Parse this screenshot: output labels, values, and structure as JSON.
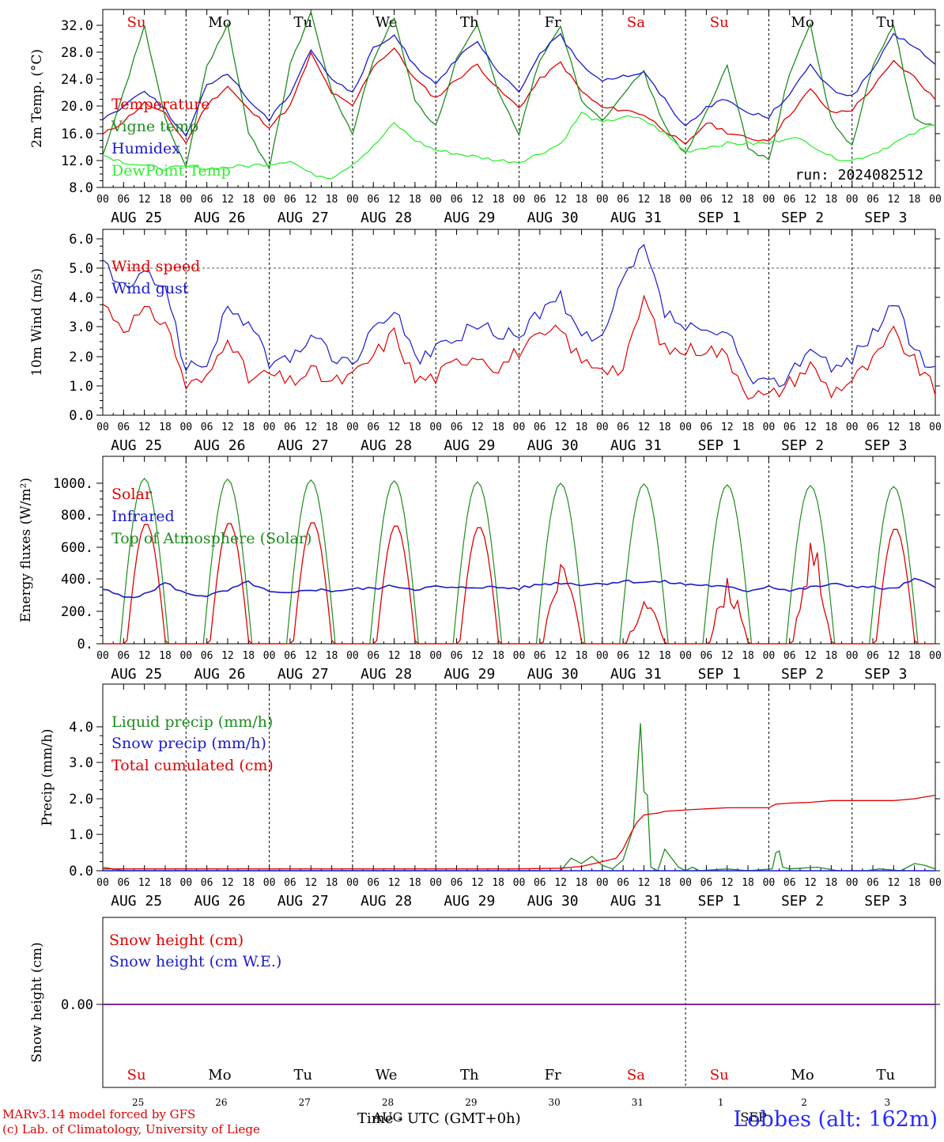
{
  "run": "run: 2024082512",
  "day_names": [
    "Su",
    "Mo",
    "Tu",
    "We",
    "Th",
    "Fr",
    "Sa",
    "Su",
    "Mo",
    "Tu"
  ],
  "day_name_colors": [
    "#e00000",
    "#000000",
    "#000000",
    "#000000",
    "#000000",
    "#000000",
    "#e00000",
    "#e00000",
    "#000000",
    "#000000"
  ],
  "hour_ticks": [
    "00",
    "06",
    "12",
    "18"
  ],
  "date_labels": [
    "AUG 25",
    "AUG 26",
    "AUG 27",
    "AUG 28",
    "AUG 29",
    "AUG 30",
    "AUG 31",
    "SEP  1",
    "SEP  2",
    "SEP  3"
  ],
  "day_numbers": [
    "25",
    "26",
    "27",
    "28",
    "29",
    "30",
    "31",
    "1",
    "2",
    "3"
  ],
  "month_labels": [
    "AUG",
    "SEP"
  ],
  "footer": {
    "model": "MARv3.14 model forced by GFS",
    "credit": "(c) Lab. of Climatology, University of Liege",
    "axis_title": "Time - UTC (GMT+0h)",
    "station": "Lobbes (alt: 162m)"
  },
  "chart_data": [
    {
      "type": "line",
      "ylabel": "2m Temp. (°C)",
      "ylim": [
        8,
        34
      ],
      "yticks": [
        "8.0",
        "12.0",
        "16.0",
        "20.0",
        "24.0",
        "28.0",
        "32.0"
      ],
      "x_unit": "hours since 2024-08-25 00 UTC",
      "series": [
        {
          "name": "Temperature",
          "color": "#e00000",
          "x": [
            0,
            6,
            12,
            18,
            24,
            30,
            36,
            42,
            48,
            54,
            60,
            66,
            72,
            78,
            84,
            90,
            96,
            102,
            108,
            114,
            120,
            126,
            132,
            138,
            144,
            150,
            156,
            162,
            168,
            174,
            180,
            186,
            192,
            198,
            204,
            210,
            216,
            222,
            228,
            234,
            240
          ],
          "values": [
            15.8,
            17.8,
            20.5,
            18.8,
            14.6,
            20.2,
            23,
            19.5,
            17,
            20,
            27.8,
            22,
            20,
            26,
            28.6,
            24,
            21.2,
            24,
            26.2,
            22.5,
            19.8,
            24,
            26.5,
            22.2,
            19.8,
            19.5,
            18.8,
            16.5,
            14.2,
            17.6,
            16.2,
            15.2,
            15,
            18.8,
            22.5,
            19,
            19.5,
            22.8,
            26.6,
            24.3,
            21
          ]
        },
        {
          "name": "Vigne temp",
          "color": "#1e8c1e",
          "x": [
            0,
            6,
            12,
            18,
            24,
            30,
            36,
            42,
            48,
            54,
            60,
            66,
            72,
            78,
            84,
            90,
            96,
            102,
            108,
            114,
            120,
            126,
            132,
            138,
            144,
            150,
            156,
            162,
            168,
            174,
            180,
            186,
            192,
            198,
            204,
            210,
            216,
            222,
            228,
            234,
            240
          ],
          "values": [
            12.5,
            22,
            32,
            18,
            11,
            26,
            32,
            16,
            11,
            26,
            34,
            22,
            16,
            27,
            33,
            21,
            17,
            27,
            32,
            22,
            16,
            27,
            32,
            21,
            18,
            22,
            25,
            17,
            13,
            19,
            26,
            14,
            12,
            25,
            32,
            18,
            14,
            26,
            32,
            18,
            17
          ]
        },
        {
          "name": "Humidex",
          "color": "#1a1acc",
          "x": [
            0,
            6,
            12,
            18,
            24,
            30,
            36,
            42,
            48,
            54,
            60,
            66,
            72,
            78,
            84,
            90,
            96,
            102,
            108,
            114,
            120,
            126,
            132,
            138,
            144,
            150,
            156,
            162,
            168,
            174,
            180,
            186,
            192,
            198,
            204,
            210,
            216,
            222,
            228,
            234,
            240
          ],
          "values": [
            18.2,
            20,
            22.5,
            19.5,
            15.5,
            23,
            25,
            21,
            18,
            22,
            28.5,
            24,
            22,
            28.5,
            30.5,
            26,
            23.5,
            27,
            29.5,
            25,
            22,
            28,
            30.5,
            26,
            24,
            24.5,
            25,
            21,
            17,
            20,
            21,
            19,
            18.5,
            22,
            26,
            22.5,
            21.5,
            25.5,
            30.5,
            29,
            26
          ]
        },
        {
          "name": "DewPoint Temp",
          "color": "#33ee33",
          "x": [
            0,
            6,
            12,
            18,
            24,
            30,
            36,
            42,
            48,
            54,
            60,
            66,
            72,
            78,
            84,
            90,
            96,
            102,
            108,
            114,
            120,
            126,
            132,
            138,
            144,
            150,
            156,
            162,
            168,
            174,
            180,
            186,
            192,
            198,
            204,
            210,
            216,
            222,
            228,
            234,
            240
          ],
          "values": [
            12.8,
            11.8,
            11.2,
            10.8,
            11,
            10.8,
            11,
            11.2,
            11.5,
            12,
            10,
            9.5,
            11.5,
            14,
            17.5,
            15,
            13.5,
            13,
            12.5,
            12,
            11.8,
            13,
            14.5,
            19,
            17.5,
            18.5,
            18,
            16,
            13.3,
            14,
            14.5,
            14.5,
            14.5,
            15.5,
            14.5,
            12.5,
            12,
            13,
            14.5,
            16,
            17.5
          ]
        }
      ]
    },
    {
      "type": "line",
      "ylabel": "10m Wind (m/s)",
      "ylim": [
        0,
        6
      ],
      "yticks": [
        "0.0",
        "1.0",
        "2.0",
        "3.0",
        "4.0",
        "5.0",
        "6.0"
      ],
      "reference_line": 5,
      "series": [
        {
          "name": "Wind speed",
          "color": "#e00000",
          "x": [
            0,
            6,
            12,
            18,
            24,
            30,
            36,
            42,
            48,
            54,
            60,
            66,
            72,
            78,
            84,
            90,
            96,
            102,
            108,
            114,
            120,
            126,
            132,
            138,
            144,
            150,
            156,
            162,
            168,
            174,
            180,
            186,
            192,
            198,
            204,
            210,
            216,
            222,
            228,
            234,
            240
          ],
          "values": [
            3.8,
            3,
            3.5,
            3.2,
            1,
            1.2,
            2.8,
            1.2,
            1.4,
            1.1,
            1.5,
            1.1,
            1.3,
            2,
            2.8,
            1.2,
            1.3,
            1.8,
            2.1,
            1.6,
            2.2,
            2.6,
            2.9,
            1.8,
            1.7,
            1.5,
            4,
            2.2,
            2.2,
            2.3,
            2,
            0.8,
            0.6,
            1.1,
            1.7,
            0.8,
            1.2,
            1.8,
            2.8,
            1.8,
            0.8
          ]
        },
        {
          "name": "Wind gust",
          "color": "#1a1acc",
          "x": [
            0,
            6,
            12,
            18,
            24,
            30,
            36,
            42,
            48,
            54,
            60,
            66,
            72,
            78,
            84,
            90,
            96,
            102,
            108,
            114,
            120,
            126,
            132,
            138,
            144,
            150,
            156,
            162,
            168,
            174,
            180,
            186,
            192,
            198,
            204,
            210,
            216,
            222,
            228,
            234,
            240
          ],
          "values": [
            5.2,
            4.3,
            4.7,
            4.5,
            1.5,
            1.8,
            3.6,
            3.2,
            1.8,
            1.8,
            2.8,
            2,
            1.8,
            2.8,
            3.7,
            1.8,
            2.3,
            2.5,
            3.2,
            2.6,
            2.8,
            3.5,
            4,
            2.6,
            2.5,
            4.6,
            5.7,
            3.5,
            3,
            2.7,
            2.8,
            1.3,
            1,
            1.4,
            2.4,
            1.5,
            2,
            2.8,
            3.9,
            2.2,
            1.4
          ]
        }
      ]
    },
    {
      "type": "line",
      "ylabel": "Energy fluxes (W/m²)",
      "ylim": [
        0,
        1080
      ],
      "yticks": [
        "0.",
        "200.",
        "400.",
        "600.",
        "800.",
        "1000."
      ],
      "series": [
        {
          "name": "Solar",
          "color": "#e00000",
          "days": [
            {
              "peak": 750,
              "noise": 0
            },
            {
              "peak": 755,
              "noise": 0
            },
            {
              "peak": 760,
              "noise": 0
            },
            {
              "peak": 740,
              "noise": 0
            },
            {
              "peak": 730,
              "noise": 0
            },
            {
              "peak": 590,
              "noise": 1
            },
            {
              "peak": 330,
              "noise": 1
            },
            {
              "peak": 500,
              "noise": 1
            },
            {
              "peak": 720,
              "noise": 1
            },
            {
              "peak": 720,
              "noise": 0
            }
          ]
        },
        {
          "name": "Infrared",
          "color": "#1a1acc",
          "x": [
            0,
            6,
            12,
            18,
            24,
            30,
            36,
            42,
            48,
            54,
            60,
            66,
            72,
            78,
            84,
            90,
            96,
            102,
            108,
            114,
            120,
            126,
            132,
            138,
            144,
            150,
            156,
            162,
            168,
            174,
            180,
            186,
            192,
            198,
            204,
            210,
            216,
            222,
            228,
            234,
            240
          ],
          "values": [
            340,
            290,
            305,
            380,
            310,
            300,
            330,
            385,
            320,
            310,
            340,
            330,
            340,
            345,
            360,
            340,
            355,
            345,
            355,
            350,
            345,
            370,
            380,
            370,
            375,
            390,
            385,
            385,
            370,
            365,
            350,
            330,
            360,
            330,
            350,
            370,
            360,
            350,
            340,
            400,
            360
          ]
        },
        {
          "name": "Top of Atmosphere (Solar)",
          "color": "#1e8c1e",
          "peaks": [
            1030,
            1025,
            1020,
            1015,
            1008,
            1000,
            995,
            990,
            985,
            980
          ]
        }
      ]
    },
    {
      "type": "line",
      "ylabel": "Precip (mm/h)",
      "ylim": [
        0,
        4.5
      ],
      "yticks": [
        "0.0",
        "1.0",
        "2.0",
        "3.0",
        "4.0"
      ],
      "series": [
        {
          "name": "Liquid precip (mm/h)",
          "color": "#1e8c1e",
          "x": [
            0,
            3,
            6,
            120,
            132,
            135,
            138,
            141,
            144,
            147,
            150,
            153,
            155,
            156,
            157,
            158,
            160,
            162,
            166,
            168,
            170,
            172,
            180,
            186,
            193,
            194,
            195,
            196,
            198,
            206,
            212,
            220,
            224,
            230,
            234,
            237,
            240
          ],
          "values": [
            0.1,
            0.05,
            0,
            0,
            0,
            0.35,
            0.2,
            0.4,
            0.15,
            0.05,
            0.3,
            1.2,
            4.1,
            2.2,
            2.1,
            0.1,
            0,
            0.6,
            0.1,
            0,
            0.1,
            0,
            0.05,
            0,
            0.05,
            0.5,
            0.55,
            0.1,
            0.05,
            0.1,
            0,
            0,
            0.05,
            0,
            0.2,
            0.15,
            0.05
          ]
        },
        {
          "name": "Snow precip (mm/h)",
          "color": "#1a1acc",
          "x": [
            0,
            240
          ],
          "values": [
            0,
            0
          ]
        },
        {
          "name": "Total cumulated (cm)",
          "color": "#e00000",
          "x": [
            0,
            120,
            132,
            138,
            144,
            148,
            150,
            152,
            154,
            156,
            158,
            160,
            162,
            170,
            180,
            186,
            192,
            194,
            198,
            204,
            210,
            216,
            222,
            228,
            234,
            240
          ],
          "values": [
            0.05,
            0.05,
            0.07,
            0.12,
            0.25,
            0.35,
            0.6,
            1,
            1.35,
            1.55,
            1.58,
            1.6,
            1.65,
            1.7,
            1.75,
            1.75,
            1.75,
            1.85,
            1.88,
            1.9,
            1.95,
            1.95,
            1.95,
            1.95,
            2.0,
            2.1
          ]
        }
      ]
    },
    {
      "type": "line",
      "ylabel": "Snow height (cm)",
      "yticks": [
        "0.00"
      ],
      "series": [
        {
          "name": "Snow height (cm)",
          "color": "#e00000",
          "x": [
            0,
            240
          ],
          "values": [
            0,
            0
          ]
        },
        {
          "name": "Snow height (cm W.E.)",
          "color": "#1a1acc",
          "x": [
            0,
            240
          ],
          "values": [
            0,
            0
          ]
        }
      ]
    }
  ]
}
